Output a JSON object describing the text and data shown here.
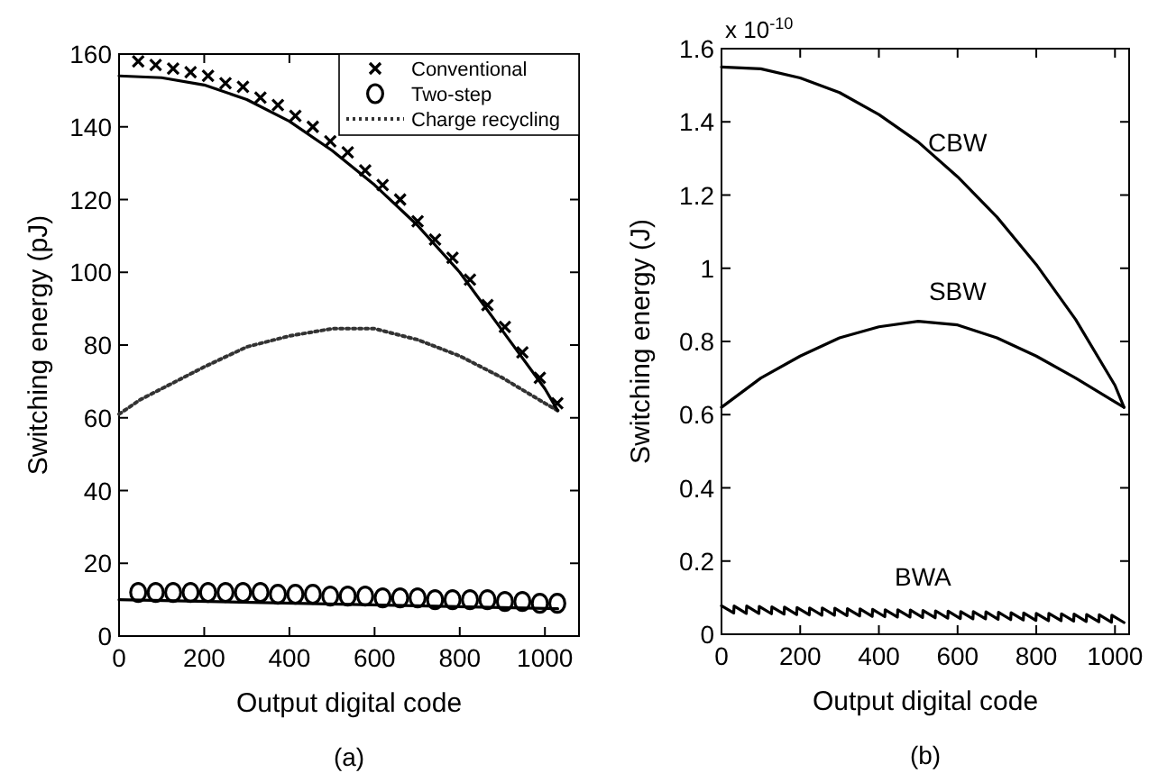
{
  "chart_data": [
    {
      "type": "line",
      "xlabel": "Output digital code",
      "ylabel": "Switching energy (pJ)",
      "xlim": [
        0,
        1080
      ],
      "ylim": [
        0,
        160
      ],
      "xticks": [
        0,
        200,
        400,
        600,
        800,
        1000
      ],
      "yticks": [
        0,
        20,
        40,
        60,
        80,
        100,
        120,
        140,
        160
      ],
      "legend": "top right",
      "annotations": [
        "(a)"
      ],
      "series": [
        {
          "type": "scatter",
          "name": "Conventional",
          "color": "#000000",
          "marker": "cross",
          "x": [
            45,
            86,
            127,
            168,
            209,
            250,
            291,
            332,
            373,
            414,
            455,
            496,
            537,
            578,
            619,
            660,
            701,
            742,
            783,
            824,
            865,
            906,
            947,
            988,
            1029
          ],
          "values": [
            158,
            157,
            156,
            155,
            154,
            152,
            151,
            148,
            146,
            143,
            140,
            136,
            133,
            128,
            124,
            120,
            114,
            109,
            104,
            98,
            91,
            85,
            78,
            71,
            64
          ]
        },
        {
          "type": "scatter",
          "name": "Two-step",
          "color": "#000000",
          "marker": "circle",
          "x": [
            45,
            86,
            127,
            168,
            209,
            250,
            291,
            332,
            373,
            414,
            455,
            496,
            537,
            578,
            619,
            660,
            701,
            742,
            783,
            824,
            865,
            906,
            947,
            988,
            1029
          ],
          "values": [
            12,
            12,
            12,
            12,
            12,
            12,
            12,
            12,
            11.5,
            11.5,
            11.5,
            11,
            11,
            11,
            10.5,
            10.5,
            10.5,
            10,
            10,
            10,
            10,
            9.5,
            9.5,
            9,
            9
          ]
        },
        {
          "name": "Charge recycling",
          "color": "#333333",
          "line_style": "dotted",
          "x": [
            0,
            50,
            100,
            200,
            300,
            400,
            500,
            600,
            700,
            800,
            900,
            1000,
            1030
          ],
          "values": [
            61,
            65,
            68,
            74,
            79.5,
            82.5,
            84.5,
            84.5,
            81.5,
            77,
            71,
            64,
            62
          ]
        },
        {
          "color": "#000000",
          "line_style": "solid",
          "x": [
            0,
            100,
            200,
            300,
            400,
            500,
            600,
            700,
            800,
            900,
            1000,
            1030
          ],
          "values": [
            154,
            153.5,
            151.5,
            147.5,
            141.5,
            133.5,
            124,
            113,
            100,
            84,
            68,
            62
          ]
        },
        {
          "color": "#000000",
          "line_style": "solid",
          "x": [
            0,
            1030
          ],
          "values": [
            10,
            7.5
          ]
        }
      ]
    },
    {
      "type": "line",
      "xlabel": "Output digital code",
      "ylabel": "Switching energy (J)",
      "xlim": [
        0,
        1036
      ],
      "ylim": [
        0,
        1.6
      ],
      "xticks": [
        0,
        200,
        400,
        600,
        800,
        1000
      ],
      "yticks": [
        0,
        0.2,
        0.4,
        0.6,
        0.8,
        1,
        1.2,
        1.4,
        1.6
      ],
      "annotations": [
        "x 10$^{-10}$",
        "(b)"
      ],
      "series": [
        {
          "name": "CBW",
          "color": "#000000",
          "x": [
            0,
            100,
            200,
            300,
            400,
            500,
            600,
            700,
            800,
            900,
            1000,
            1023
          ],
          "values": [
            1.55,
            1.545,
            1.52,
            1.48,
            1.42,
            1.345,
            1.25,
            1.14,
            1.01,
            0.86,
            0.68,
            0.62
          ]
        },
        {
          "name": "SBW",
          "color": "#000000",
          "x": [
            0,
            100,
            200,
            300,
            400,
            500,
            600,
            700,
            800,
            900,
            1000,
            1023
          ],
          "values": [
            0.62,
            0.7,
            0.76,
            0.81,
            0.84,
            0.855,
            0.845,
            0.81,
            0.76,
            0.7,
            0.635,
            0.62
          ]
        },
        {
          "name": "BWA",
          "color": "#000000",
          "x": [
            0,
            31,
            32,
            63,
            64,
            95,
            96,
            127,
            128,
            159,
            160,
            191,
            192,
            223,
            224,
            255,
            256,
            287,
            288,
            319,
            320,
            351,
            352,
            383,
            384,
            415,
            416,
            447,
            448,
            479,
            480,
            511,
            512,
            543,
            544,
            575,
            576,
            607,
            608,
            639,
            640,
            671,
            672,
            703,
            704,
            735,
            736,
            767,
            768,
            799,
            800,
            831,
            832,
            863,
            864,
            895,
            896,
            927,
            928,
            959,
            960,
            991,
            992,
            1023
          ],
          "values": [
            0.078,
            0.058,
            0.077,
            0.057,
            0.077,
            0.057,
            0.076,
            0.056,
            0.075,
            0.055,
            0.074,
            0.054,
            0.073,
            0.053,
            0.072,
            0.052,
            0.072,
            0.052,
            0.071,
            0.051,
            0.07,
            0.05,
            0.069,
            0.049,
            0.068,
            0.048,
            0.067,
            0.047,
            0.067,
            0.047,
            0.066,
            0.046,
            0.065,
            0.045,
            0.064,
            0.044,
            0.063,
            0.043,
            0.062,
            0.042,
            0.062,
            0.042,
            0.061,
            0.041,
            0.06,
            0.04,
            0.059,
            0.039,
            0.058,
            0.038,
            0.057,
            0.037,
            0.057,
            0.037,
            0.056,
            0.036,
            0.055,
            0.035,
            0.054,
            0.034,
            0.053,
            0.033,
            0.052,
            0.032
          ]
        }
      ]
    }
  ]
}
